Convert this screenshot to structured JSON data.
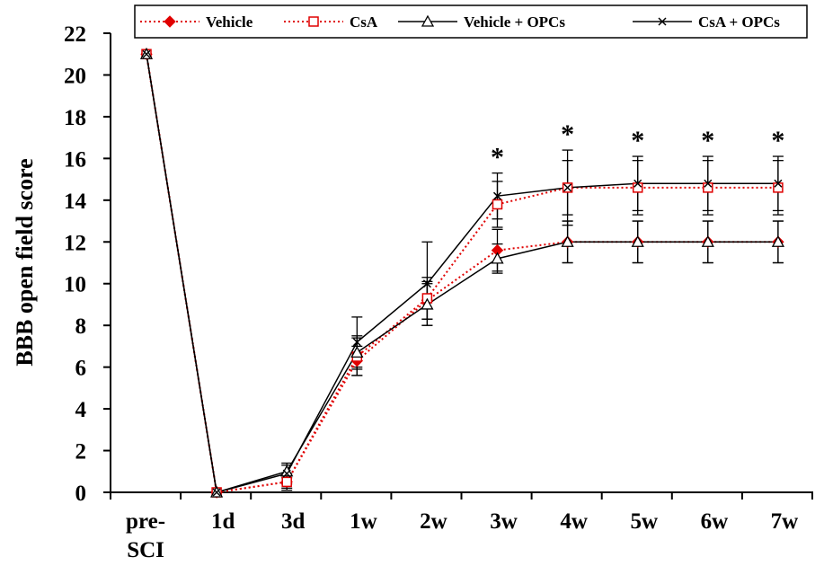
{
  "chart_data": {
    "type": "line",
    "ylabel": "BBB open field score",
    "ylim": [
      0,
      22
    ],
    "yticks": [
      0,
      2,
      4,
      6,
      8,
      10,
      12,
      14,
      16,
      18,
      20,
      22
    ],
    "categories": [
      "pre-SCI",
      "1d",
      "3d",
      "1w",
      "2w",
      "3w",
      "4w",
      "5w",
      "6w",
      "7w"
    ],
    "grid": false,
    "legend_position": "top",
    "significance_marks": [
      {
        "symbol": "*",
        "after": "2w"
      },
      {
        "symbol": "*",
        "after": "3w"
      },
      {
        "symbol": "*",
        "after": "4w"
      },
      {
        "symbol": "*",
        "after": "5w"
      },
      {
        "symbol": "*",
        "after": "6w"
      }
    ],
    "series": [
      {
        "name": "Vehicle",
        "color": "#e00000",
        "style": "dotted",
        "marker": "diamond-filled",
        "values": [
          21,
          0,
          0.5,
          6.3,
          9.2,
          11.6,
          12.0,
          12.0,
          12.0,
          12.0
        ],
        "errors": [
          0,
          0,
          0.3,
          0.7,
          0.9,
          1.0,
          1.0,
          1.0,
          1.0,
          1.0
        ]
      },
      {
        "name": "CsA",
        "color": "#e00000",
        "style": "dotted",
        "marker": "square-open",
        "values": [
          21,
          0,
          0.5,
          6.5,
          9.3,
          13.8,
          14.6,
          14.6,
          14.6,
          14.6
        ],
        "errors": [
          0,
          0,
          0.4,
          0.9,
          1.0,
          1.1,
          1.3,
          1.3,
          1.3,
          1.3
        ]
      },
      {
        "name": "Vehicle + OPCs",
        "color": "#000000",
        "style": "solid",
        "marker": "triangle-open",
        "values": [
          21,
          0,
          1.0,
          6.7,
          9.0,
          11.2,
          12.0,
          12.0,
          12.0,
          12.0
        ],
        "errors": [
          0,
          0,
          0.3,
          0.8,
          1.0,
          0.7,
          1.0,
          1.0,
          1.0,
          1.0
        ]
      },
      {
        "name": "CsA + OPCs",
        "color": "#000000",
        "style": "solid",
        "marker": "x",
        "values": [
          21,
          0,
          0.9,
          7.2,
          10.0,
          14.2,
          14.6,
          14.8,
          14.8,
          14.8
        ],
        "errors": [
          0,
          0,
          0.5,
          1.2,
          2.0,
          1.1,
          1.8,
          1.3,
          1.3,
          1.3
        ]
      }
    ]
  }
}
